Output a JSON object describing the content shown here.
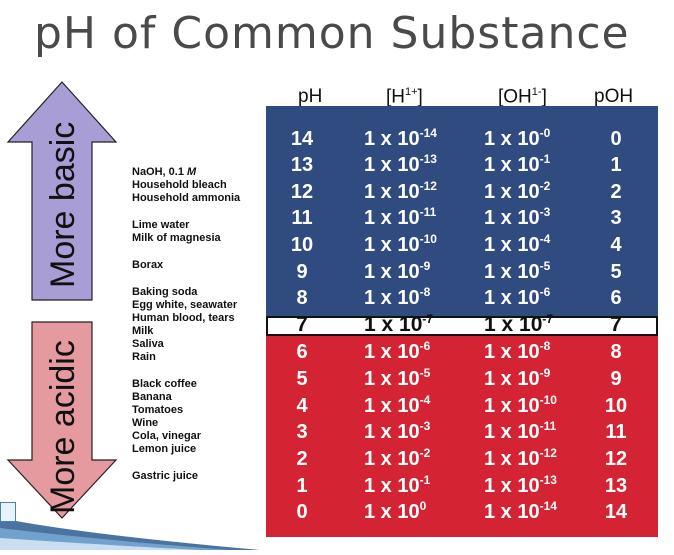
{
  "title": "pH of Common Substance",
  "arrows": {
    "basic_label": "More basic",
    "acidic_label": "More acidic",
    "basic_color": "#a89dd4",
    "acidic_color": "#e59a9f"
  },
  "headers": {
    "ph": "pH",
    "h_base": "[H",
    "h_sup": "1+",
    "h_end": "]",
    "oh_base": "[OH",
    "oh_sup": "1-",
    "oh_end": "]",
    "poh": "pOH"
  },
  "colors": {
    "basic_panel": "#2f4b80",
    "neutral_panel": "#ffffff",
    "acidic_panel": "#d42333"
  },
  "substances": [
    {
      "name": "NaOH, 0.1 ",
      "italic": "M"
    },
    {
      "name": "Household bleach"
    },
    {
      "name": "Household ammonia"
    },
    {
      "name": "Lime water"
    },
    {
      "name": "Milk of magnesia"
    },
    {
      "name": "Borax"
    },
    {
      "name": "Baking soda"
    },
    {
      "name": "Egg white, seawater"
    },
    {
      "name": "Human blood, tears"
    },
    {
      "name": "Milk"
    },
    {
      "name": "Saliva"
    },
    {
      "name": "Rain"
    },
    {
      "name": "Black coffee"
    },
    {
      "name": "Banana"
    },
    {
      "name": "Tomatoes"
    },
    {
      "name": "Wine"
    },
    {
      "name": "Cola, vinegar"
    },
    {
      "name": "Lemon juice"
    },
    {
      "name": "Gastric juice"
    }
  ],
  "rows": [
    {
      "ph": "14",
      "h_exp": "-14",
      "oh_exp": "-0",
      "poh": "0"
    },
    {
      "ph": "13",
      "h_exp": "-13",
      "oh_exp": "-1",
      "poh": "1"
    },
    {
      "ph": "12",
      "h_exp": "-12",
      "oh_exp": "-2",
      "poh": "2"
    },
    {
      "ph": "11",
      "h_exp": "-11",
      "oh_exp": "-3",
      "poh": "3"
    },
    {
      "ph": "10",
      "h_exp": "-10",
      "oh_exp": "-4",
      "poh": "4"
    },
    {
      "ph": "9",
      "h_exp": "-9",
      "oh_exp": "-5",
      "poh": "5"
    },
    {
      "ph": "8",
      "h_exp": "-8",
      "oh_exp": "-6",
      "poh": "6"
    },
    {
      "ph": "7",
      "h_exp": "-7",
      "oh_exp": "-7",
      "poh": "7"
    },
    {
      "ph": "6",
      "h_exp": "-6",
      "oh_exp": "-8",
      "poh": "8"
    },
    {
      "ph": "5",
      "h_exp": "-5",
      "oh_exp": "-9",
      "poh": "9"
    },
    {
      "ph": "4",
      "h_exp": "-4",
      "oh_exp": "-10",
      "poh": "10"
    },
    {
      "ph": "3",
      "h_exp": "-3",
      "oh_exp": "-11",
      "poh": "11"
    },
    {
      "ph": "2",
      "h_exp": "-2",
      "oh_exp": "-12",
      "poh": "12"
    },
    {
      "ph": "1",
      "h_exp": "-1",
      "oh_exp": "-13",
      "poh": "13"
    },
    {
      "ph": "0",
      "h_exp": "0",
      "oh_exp": "-14",
      "poh": "14"
    }
  ],
  "mantissa": "1 x 10"
}
